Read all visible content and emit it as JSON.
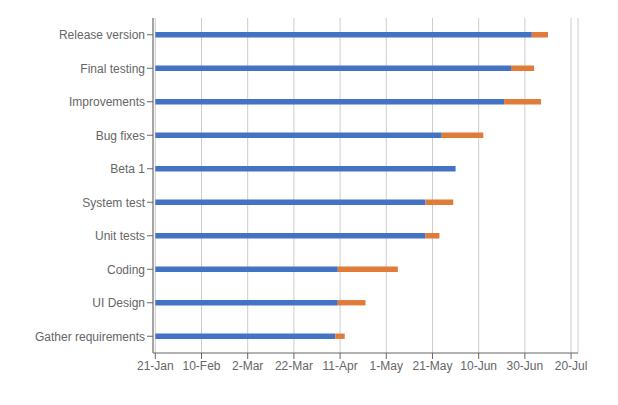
{
  "chart_data": {
    "type": "bar",
    "orientation": "horizontal",
    "stacked": true,
    "grid": true,
    "categories": [
      "Gather requirements",
      "UI Design",
      "Coding",
      "Unit tests",
      "System test",
      "Beta 1",
      "Bug fixes",
      "Improvements",
      "Final testing",
      "Release version"
    ],
    "series": [
      {
        "color": "#4472C4",
        "values": [
          78,
          79,
          79,
          117,
          117,
          130,
          124,
          151,
          154,
          163
        ]
      },
      {
        "color": "#E07B39",
        "values": [
          4,
          12,
          26,
          6,
          12,
          0,
          18,
          16,
          10,
          7
        ]
      }
    ],
    "xlim": [
      -1,
      183
    ],
    "xticks": [
      {
        "value": 0,
        "label": "21-Jan"
      },
      {
        "value": 20,
        "label": "10-Feb"
      },
      {
        "value": 40,
        "label": "2-Mar"
      },
      {
        "value": 60,
        "label": "22-Mar"
      },
      {
        "value": 80,
        "label": "11-Apr"
      },
      {
        "value": 100,
        "label": "1-May"
      },
      {
        "value": 120,
        "label": "21-May"
      },
      {
        "value": 140,
        "label": "10-Jun"
      },
      {
        "value": 160,
        "label": "30-Jun"
      },
      {
        "value": 180,
        "label": "20-Jul"
      }
    ]
  }
}
